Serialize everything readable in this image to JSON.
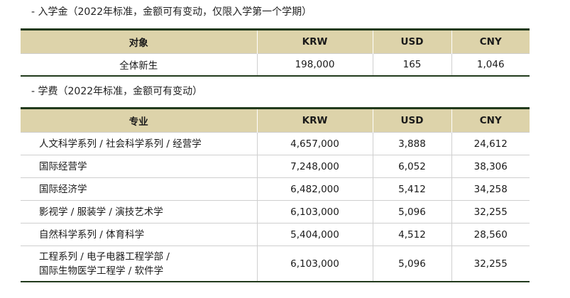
{
  "entrance": {
    "title": "- 入学金（2022年标准，金额可有变动，仅限入学第一个学期）",
    "headers": [
      "对象",
      "KRW",
      "USD",
      "CNY"
    ],
    "rows": [
      {
        "target": "全体新生",
        "krw": "198,000",
        "usd": "165",
        "cny": "1,046"
      }
    ]
  },
  "tuition": {
    "title": "- 学费（2022年标准，金额可有变动）",
    "headers": [
      "专业",
      "KRW",
      "USD",
      "CNY"
    ],
    "rows": [
      {
        "major": [
          "人文科学系列 / 社会科学系列 / 经营学"
        ],
        "krw": "4,657,000",
        "usd": "3,888",
        "cny": "24,612"
      },
      {
        "major": [
          "国际经营学"
        ],
        "krw": "7,248,000",
        "usd": "6,052",
        "cny": "38,306"
      },
      {
        "major": [
          "国际经济学"
        ],
        "krw": "6,482,000",
        "usd": "5,412",
        "cny": "34,258"
      },
      {
        "major": [
          "影视学 / 服装学 / 演技艺术学"
        ],
        "krw": "6,103,000",
        "usd": "5,096",
        "cny": "32,255"
      },
      {
        "major": [
          "自然科学系列 / 体育科学"
        ],
        "krw": "5,404,000",
        "usd": "4,512",
        "cny": "28,560"
      },
      {
        "major": [
          "工程系列 / 电子电器工程学部 /",
          "国际生物医学工程学 / 软件学"
        ],
        "krw": "6,103,000",
        "usd": "5,096",
        "cny": "32,255"
      }
    ]
  }
}
